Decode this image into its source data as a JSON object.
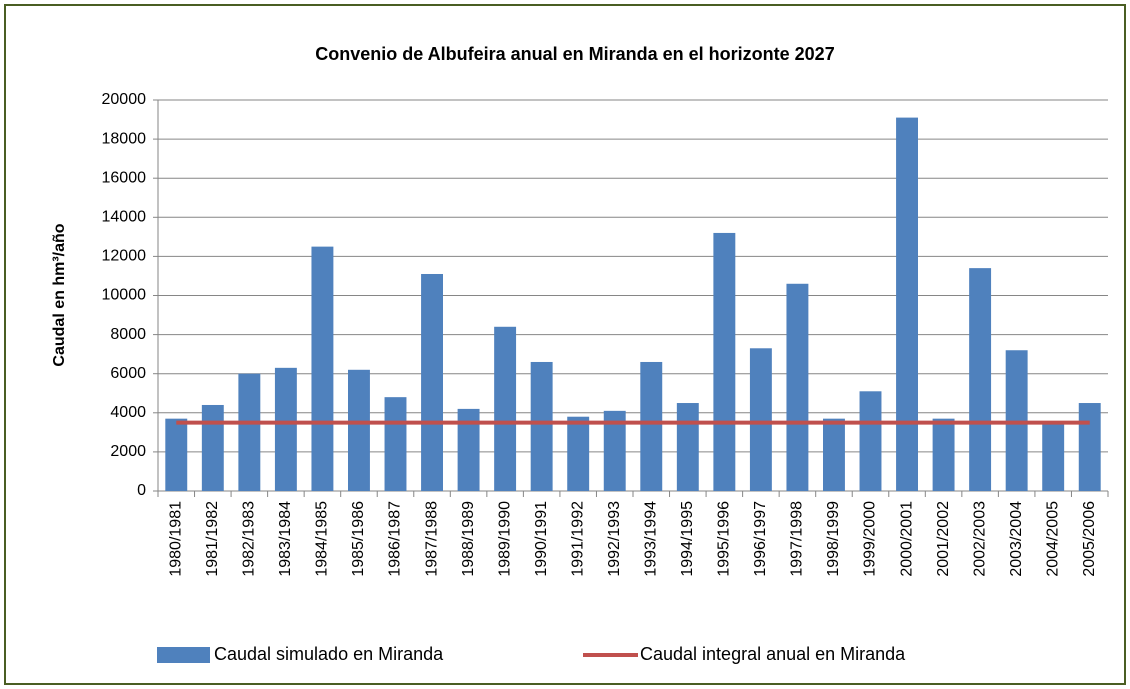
{
  "chart_data": {
    "type": "bar",
    "title": "Convenio de Albufeira anual en Miranda en el horizonte 2027",
    "y_label": "Caudal en hm³/año",
    "categories": [
      "1980/1981",
      "1981/1982",
      "1982/1983",
      "1983/1984",
      "1984/1985",
      "1985/1986",
      "1986/1987",
      "1987/1988",
      "1988/1989",
      "1989/1990",
      "1990/1991",
      "1991/1992",
      "1992/1993",
      "1993/1994",
      "1994/1995",
      "1995/1996",
      "1996/1997",
      "1997/1998",
      "1998/1999",
      "1999/2000",
      "2000/2001",
      "2001/2002",
      "2002/2003",
      "2003/2004",
      "2004/2005",
      "2005/2006"
    ],
    "series": [
      {
        "name": "Caudal simulado en Miranda",
        "type": "bar",
        "color": "#4f81bd",
        "values": [
          3700,
          4400,
          6000,
          6300,
          12500,
          6200,
          4800,
          11100,
          4200,
          8400,
          6600,
          3800,
          4100,
          6600,
          4500,
          13200,
          7300,
          10600,
          3700,
          5100,
          19100,
          3700,
          11400,
          7200,
          3500,
          4500
        ]
      },
      {
        "name": "Caudal integral anual en Miranda",
        "type": "line",
        "color": "#c0504d",
        "values": [
          3500,
          3500,
          3500,
          3500,
          3500,
          3500,
          3500,
          3500,
          3500,
          3500,
          3500,
          3500,
          3500,
          3500,
          3500,
          3500,
          3500,
          3500,
          3500,
          3500,
          3500,
          3500,
          3500,
          3500,
          3500,
          3500
        ]
      }
    ],
    "ylim": [
      0,
      20000
    ],
    "yticks": [
      0,
      2000,
      4000,
      6000,
      8000,
      10000,
      12000,
      14000,
      16000,
      18000,
      20000
    ],
    "grid": true,
    "legend": "bottom"
  }
}
